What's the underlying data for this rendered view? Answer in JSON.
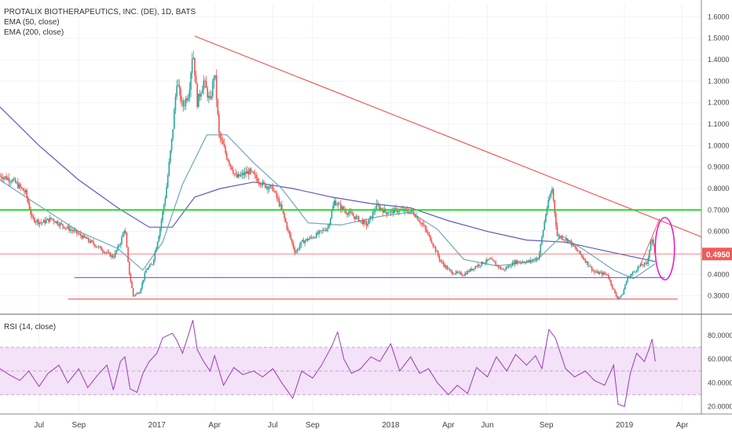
{
  "header": {
    "symbol": "PROTALIX BIOTHERAPEUTICS, INC. (DE), 1D, BATS",
    "ema50_label": "EMA (50, close)",
    "ema200_label": "EMA (200, close)",
    "rsi_label": "RSI (14, close)"
  },
  "colors": {
    "ema50": "#6fa8b8",
    "ema200": "#5b5bbf",
    "trendline": "#f05a5a",
    "support_green": "#22dd22",
    "support_blue": "#7070dd",
    "ellipse": "#e020d0",
    "rsi_line": "#9b3bb5",
    "rsi_band": "#f3e2f8",
    "price_badge": "#f05a5a",
    "candle_up": "#26a69a",
    "candle_down": "#ef5350"
  },
  "price_badge": "0.4950",
  "chart_data": [
    {
      "type": "candlestick",
      "title": "PROTALIX BIOTHERAPEUTICS, INC. (DE), 1D, BATS",
      "y_ticks": [
        "0.3000",
        "0.4000",
        "0.5000",
        "0.6000",
        "0.7000",
        "0.8000",
        "0.9000",
        "1.0000",
        "1.1000",
        "1.2000",
        "1.3000",
        "1.4000",
        "1.5000",
        "1.6000"
      ],
      "ylim": [
        0.24,
        1.66
      ],
      "x_ticks": [
        "Jul",
        "Sep",
        "2017",
        "Apr",
        "Jul",
        "Sep",
        "2018",
        "Apr",
        "Jun",
        "Sep",
        "2019",
        "Apr"
      ],
      "xlim": [
        "2016-05-01",
        "2019-05-01"
      ],
      "last_price": 0.495,
      "price_path": [
        [
          "2016-05-01",
          0.86
        ],
        [
          "2016-05-20",
          0.84
        ],
        [
          "2016-06-10",
          0.78
        ],
        [
          "2016-06-20",
          0.66
        ],
        [
          "2016-07-05",
          0.64
        ],
        [
          "2016-07-20",
          0.66
        ],
        [
          "2016-08-05",
          0.63
        ],
        [
          "2016-08-25",
          0.6
        ],
        [
          "2016-09-15",
          0.56
        ],
        [
          "2016-10-05",
          0.52
        ],
        [
          "2016-10-25",
          0.48
        ],
        [
          "2016-11-05",
          0.55
        ],
        [
          "2016-11-12",
          0.62
        ],
        [
          "2016-11-18",
          0.42
        ],
        [
          "2016-11-25",
          0.3
        ],
        [
          "2016-12-05",
          0.32
        ],
        [
          "2016-12-15",
          0.42
        ],
        [
          "2016-12-25",
          0.45
        ],
        [
          "2017-01-05",
          0.6
        ],
        [
          "2017-01-15",
          0.78
        ],
        [
          "2017-01-25",
          1.05
        ],
        [
          "2017-02-01",
          1.3
        ],
        [
          "2017-02-10",
          1.18
        ],
        [
          "2017-02-20",
          1.25
        ],
        [
          "2017-02-26",
          1.45
        ],
        [
          "2017-03-05",
          1.2
        ],
        [
          "2017-03-15",
          1.3
        ],
        [
          "2017-03-25",
          1.2
        ],
        [
          "2017-04-01",
          1.35
        ],
        [
          "2017-04-08",
          1.05
        ],
        [
          "2017-04-20",
          0.95
        ],
        [
          "2017-05-05",
          0.85
        ],
        [
          "2017-05-25",
          0.88
        ],
        [
          "2017-06-15",
          0.82
        ],
        [
          "2017-07-01",
          0.8
        ],
        [
          "2017-07-15",
          0.7
        ],
        [
          "2017-07-25",
          0.6
        ],
        [
          "2017-08-05",
          0.5
        ],
        [
          "2017-08-15",
          0.55
        ],
        [
          "2017-09-05",
          0.58
        ],
        [
          "2017-09-25",
          0.62
        ],
        [
          "2017-10-05",
          0.74
        ],
        [
          "2017-10-20",
          0.7
        ],
        [
          "2017-11-10",
          0.66
        ],
        [
          "2017-11-25",
          0.63
        ],
        [
          "2017-12-10",
          0.72
        ],
        [
          "2017-12-25",
          0.69
        ],
        [
          "2018-01-15",
          0.7
        ],
        [
          "2018-02-05",
          0.69
        ],
        [
          "2018-02-20",
          0.63
        ],
        [
          "2018-03-05",
          0.56
        ],
        [
          "2018-03-20",
          0.46
        ],
        [
          "2018-04-05",
          0.41
        ],
        [
          "2018-04-25",
          0.4
        ],
        [
          "2018-05-15",
          0.44
        ],
        [
          "2018-06-05",
          0.47
        ],
        [
          "2018-06-25",
          0.42
        ],
        [
          "2018-07-15",
          0.46
        ],
        [
          "2018-08-05",
          0.46
        ],
        [
          "2018-08-20",
          0.48
        ],
        [
          "2018-09-01",
          0.7
        ],
        [
          "2018-09-10",
          0.8
        ],
        [
          "2018-09-18",
          0.58
        ],
        [
          "2018-10-05",
          0.56
        ],
        [
          "2018-10-25",
          0.49
        ],
        [
          "2018-11-15",
          0.41
        ],
        [
          "2018-12-05",
          0.4
        ],
        [
          "2018-12-20",
          0.29
        ],
        [
          "2018-12-28",
          0.3
        ],
        [
          "2019-01-05",
          0.38
        ],
        [
          "2019-01-15",
          0.41
        ],
        [
          "2019-01-25",
          0.44
        ],
        [
          "2019-02-05",
          0.45
        ],
        [
          "2019-02-12",
          0.57
        ],
        [
          "2019-02-18",
          0.495
        ]
      ],
      "ema200_path": [
        [
          "2016-05-01",
          1.18
        ],
        [
          "2016-07-01",
          1.0
        ],
        [
          "2016-09-01",
          0.84
        ],
        [
          "2016-11-01",
          0.71
        ],
        [
          "2016-12-20",
          0.62
        ],
        [
          "2017-01-25",
          0.62
        ],
        [
          "2017-03-01",
          0.76
        ],
        [
          "2017-04-10",
          0.8
        ],
        [
          "2017-06-01",
          0.83
        ],
        [
          "2017-08-01",
          0.8
        ],
        [
          "2017-10-01",
          0.76
        ],
        [
          "2017-12-01",
          0.73
        ],
        [
          "2018-02-01",
          0.71
        ],
        [
          "2018-04-01",
          0.65
        ],
        [
          "2018-06-01",
          0.6
        ],
        [
          "2018-08-01",
          0.56
        ],
        [
          "2018-10-01",
          0.55
        ],
        [
          "2018-12-01",
          0.51
        ],
        [
          "2019-02-18",
          0.46
        ]
      ],
      "ema50_path": [
        [
          "2016-05-01",
          0.84
        ],
        [
          "2016-07-01",
          0.72
        ],
        [
          "2016-09-01",
          0.6
        ],
        [
          "2016-11-01",
          0.52
        ],
        [
          "2016-12-10",
          0.42
        ],
        [
          "2017-01-10",
          0.55
        ],
        [
          "2017-02-10",
          0.82
        ],
        [
          "2017-03-20",
          1.05
        ],
        [
          "2017-04-20",
          1.05
        ],
        [
          "2017-06-01",
          0.92
        ],
        [
          "2017-07-15",
          0.8
        ],
        [
          "2017-08-25",
          0.64
        ],
        [
          "2017-10-15",
          0.63
        ],
        [
          "2017-12-15",
          0.67
        ],
        [
          "2018-02-01",
          0.69
        ],
        [
          "2018-03-15",
          0.61
        ],
        [
          "2018-04-25",
          0.47
        ],
        [
          "2018-06-15",
          0.44
        ],
        [
          "2018-08-15",
          0.46
        ],
        [
          "2018-09-25",
          0.58
        ],
        [
          "2018-11-01",
          0.51
        ],
        [
          "2018-12-15",
          0.42
        ],
        [
          "2019-01-15",
          0.38
        ],
        [
          "2019-02-18",
          0.45
        ]
      ],
      "drawings": {
        "trendline_start": [
          "2017-03-01",
          1.51
        ],
        "trendline_end": [
          "2019-05-01",
          0.575
        ],
        "green_horizontal": 0.7,
        "blue_horizontal": 0.385,
        "red_horizontal_low": 0.285,
        "red_horizontal_price": 0.495,
        "blue_line_start": "2016-08-25",
        "blue_line_end": "2019-03-05",
        "low_line_start": "2016-08-15",
        "low_line_end": "2019-03-25",
        "small_trend_start": [
          "2019-01-25",
          0.44
        ],
        "small_trend_end": [
          "2019-02-25",
          0.66
        ],
        "ellipse_center": [
          "2019-03-05",
          0.52
        ],
        "ellipse_radius_days": 15,
        "ellipse_radius_price": 0.145
      }
    },
    {
      "type": "line",
      "title": "RSI (14, close)",
      "y_ticks": [
        "20.0000",
        "40.0000",
        "60.0000",
        "80.0000"
      ],
      "ylim": [
        15,
        96
      ],
      "band": [
        30,
        70
      ],
      "last_value": 58,
      "rsi_path": [
        [
          "2016-05-01",
          52
        ],
        [
          "2016-05-15",
          47
        ],
        [
          "2016-06-01",
          42
        ],
        [
          "2016-06-15",
          50
        ],
        [
          "2016-07-01",
          37
        ],
        [
          "2016-07-15",
          48
        ],
        [
          "2016-08-01",
          55
        ],
        [
          "2016-08-15",
          40
        ],
        [
          "2016-09-01",
          52
        ],
        [
          "2016-09-15",
          36
        ],
        [
          "2016-10-01",
          47
        ],
        [
          "2016-10-15",
          55
        ],
        [
          "2016-10-25",
          34
        ],
        [
          "2016-11-05",
          58
        ],
        [
          "2016-11-12",
          62
        ],
        [
          "2016-11-20",
          35
        ],
        [
          "2016-12-01",
          32
        ],
        [
          "2016-12-10",
          48
        ],
        [
          "2016-12-20",
          58
        ],
        [
          "2017-01-01",
          65
        ],
        [
          "2017-01-10",
          78
        ],
        [
          "2017-01-25",
          82
        ],
        [
          "2017-02-01",
          76
        ],
        [
          "2017-02-10",
          65
        ],
        [
          "2017-02-20",
          82
        ],
        [
          "2017-02-26",
          93
        ],
        [
          "2017-03-05",
          68
        ],
        [
          "2017-03-15",
          58
        ],
        [
          "2017-03-25",
          50
        ],
        [
          "2017-04-01",
          63
        ],
        [
          "2017-04-15",
          38
        ],
        [
          "2017-05-01",
          53
        ],
        [
          "2017-05-15",
          47
        ],
        [
          "2017-06-01",
          50
        ],
        [
          "2017-06-15",
          45
        ],
        [
          "2017-07-01",
          52
        ],
        [
          "2017-07-15",
          40
        ],
        [
          "2017-08-01",
          27
        ],
        [
          "2017-08-15",
          50
        ],
        [
          "2017-09-01",
          44
        ],
        [
          "2017-09-15",
          55
        ],
        [
          "2017-10-01",
          71
        ],
        [
          "2017-10-10",
          83
        ],
        [
          "2017-10-20",
          60
        ],
        [
          "2017-11-01",
          48
        ],
        [
          "2017-11-15",
          52
        ],
        [
          "2017-12-01",
          62
        ],
        [
          "2017-12-15",
          58
        ],
        [
          "2018-01-01",
          73
        ],
        [
          "2018-01-15",
          50
        ],
        [
          "2018-02-01",
          62
        ],
        [
          "2018-02-15",
          48
        ],
        [
          "2018-03-01",
          52
        ],
        [
          "2018-03-15",
          40
        ],
        [
          "2018-04-01",
          30
        ],
        [
          "2018-04-15",
          38
        ],
        [
          "2018-05-01",
          31
        ],
        [
          "2018-05-15",
          53
        ],
        [
          "2018-06-01",
          45
        ],
        [
          "2018-06-15",
          62
        ],
        [
          "2018-07-01",
          50
        ],
        [
          "2018-07-15",
          64
        ],
        [
          "2018-08-01",
          55
        ],
        [
          "2018-08-15",
          63
        ],
        [
          "2018-08-25",
          52
        ],
        [
          "2018-09-05",
          85
        ],
        [
          "2018-09-15",
          78
        ],
        [
          "2018-10-01",
          52
        ],
        [
          "2018-10-15",
          45
        ],
        [
          "2018-11-01",
          50
        ],
        [
          "2018-11-15",
          42
        ],
        [
          "2018-12-01",
          38
        ],
        [
          "2018-12-15",
          55
        ],
        [
          "2018-12-22",
          22
        ],
        [
          "2019-01-01",
          20
        ],
        [
          "2019-01-10",
          48
        ],
        [
          "2019-01-20",
          65
        ],
        [
          "2019-02-01",
          58
        ],
        [
          "2019-02-08",
          68
        ],
        [
          "2019-02-13",
          77
        ],
        [
          "2019-02-18",
          58
        ]
      ]
    }
  ]
}
